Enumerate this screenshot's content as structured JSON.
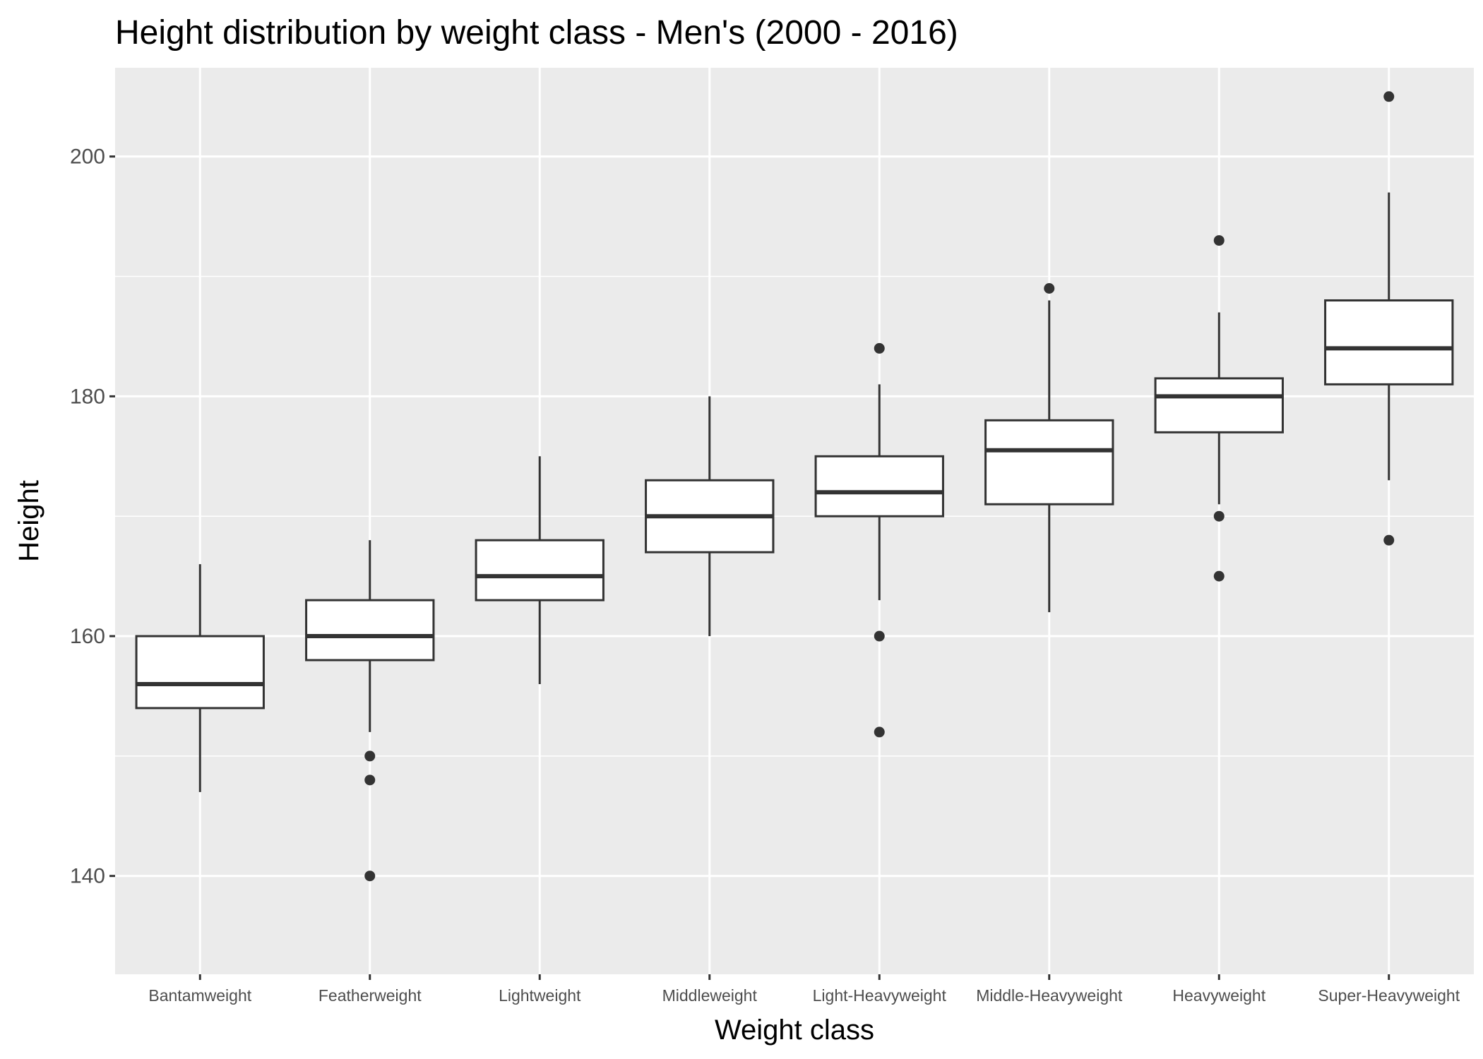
{
  "chart_data": {
    "type": "boxplot",
    "title": "Height distribution by weight class - Men's (2000 - 2016)",
    "xlabel": "Weight class",
    "ylabel": "Height",
    "ylim": [
      131.8,
      207.4
    ],
    "yticks": [
      140,
      160,
      180,
      200
    ],
    "grid": true,
    "categories": [
      "Bantamweight",
      "Featherweight",
      "Lightweight",
      "Middleweight",
      "Light-Heavyweight",
      "Middle-Heavyweight",
      "Heavyweight",
      "Super-Heavyweight"
    ],
    "boxes": [
      {
        "category": "Bantamweight",
        "whisker_low": 147,
        "q1": 154,
        "median": 156,
        "q3": 160,
        "whisker_high": 166,
        "outliers": []
      },
      {
        "category": "Featherweight",
        "whisker_low": 152,
        "q1": 158,
        "median": 160,
        "q3": 163,
        "whisker_high": 168,
        "outliers": [
          150,
          148,
          140
        ]
      },
      {
        "category": "Lightweight",
        "whisker_low": 156,
        "q1": 163,
        "median": 165,
        "q3": 168,
        "whisker_high": 175,
        "outliers": []
      },
      {
        "category": "Middleweight",
        "whisker_low": 160,
        "q1": 167,
        "median": 170,
        "q3": 173,
        "whisker_high": 180,
        "outliers": []
      },
      {
        "category": "Light-Heavyweight",
        "whisker_low": 163,
        "q1": 170,
        "median": 172,
        "q3": 175,
        "whisker_high": 181,
        "outliers": [
          184,
          160,
          152
        ]
      },
      {
        "category": "Middle-Heavyweight",
        "whisker_low": 162,
        "q1": 171,
        "median": 175.5,
        "q3": 178,
        "whisker_high": 188,
        "outliers": [
          189
        ]
      },
      {
        "category": "Heavyweight",
        "whisker_low": 171,
        "q1": 177,
        "median": 180,
        "q3": 181.5,
        "whisker_high": 187,
        "outliers": [
          193,
          170,
          165
        ]
      },
      {
        "category": "Super-Heavyweight",
        "whisker_low": 173,
        "q1": 181,
        "median": 184,
        "q3": 188,
        "whisker_high": 197,
        "outliers": [
          205,
          168
        ]
      }
    ],
    "colors": {
      "panel_background": "#ebebeb",
      "grid": "#ffffff",
      "box_fill": "#ffffff",
      "box_stroke": "#333333",
      "outlier": "#333333",
      "tick_label": "#4d4d4d",
      "text": "#000000"
    }
  }
}
